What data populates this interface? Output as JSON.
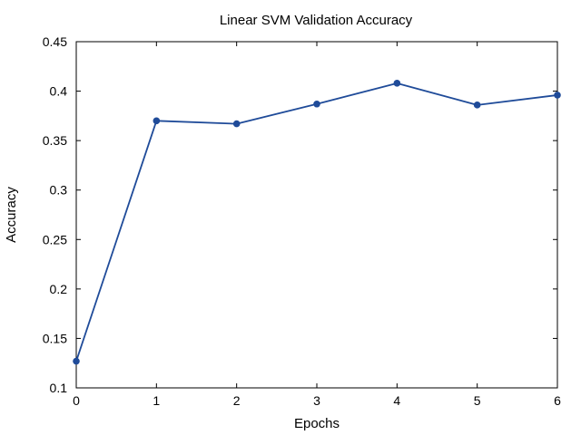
{
  "chart_data": {
    "type": "line",
    "title": "Linear SVM Validation Accuracy",
    "xlabel": "Epochs",
    "ylabel": "Accuracy",
    "xlim": [
      0,
      6
    ],
    "ylim": [
      0.1,
      0.45
    ],
    "xticks": [
      "0",
      "1",
      "2",
      "3",
      "4",
      "5",
      "6"
    ],
    "yticks": [
      "0.1",
      "0.15",
      "0.2",
      "0.25",
      "0.3",
      "0.35",
      "0.4",
      "0.45"
    ],
    "grid": false,
    "series": [
      {
        "color": "#1f4b99",
        "x": [
          0,
          1,
          2,
          3,
          4,
          5,
          6
        ],
        "y": [
          0.127,
          0.37,
          0.367,
          0.387,
          0.408,
          0.386,
          0.396
        ]
      }
    ]
  }
}
